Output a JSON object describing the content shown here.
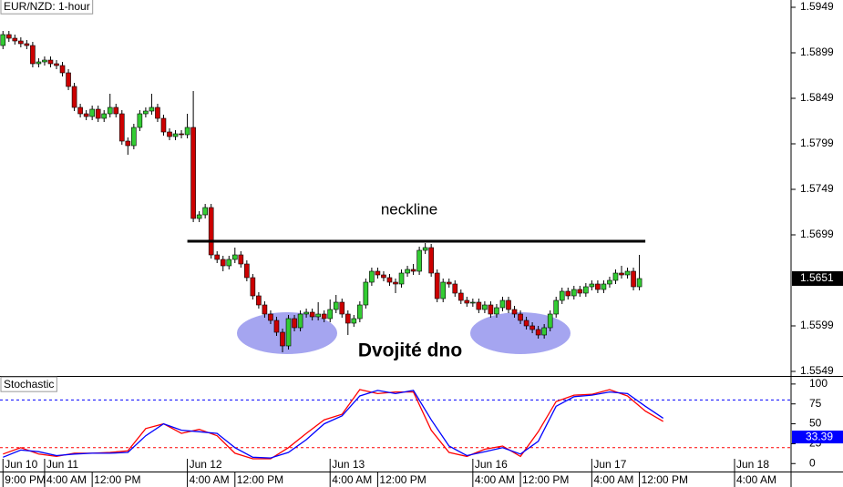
{
  "chart_data": [
    {
      "type": "candlestick",
      "title": "EUR/NZD: 1-hour",
      "up_color": "#33cc33",
      "down_color": "#cc0000",
      "open": [
        1.5907,
        1.5919,
        1.5915,
        1.5912,
        1.5909,
        1.5907,
        1.5887,
        1.5889,
        1.5891,
        1.5887,
        1.5885,
        1.5877,
        1.5862,
        1.5839,
        1.5832,
        1.5829,
        1.5837,
        1.5827,
        1.5832,
        1.5839,
        1.5832,
        1.5802,
        1.5797,
        1.5817,
        1.5832,
        1.5835,
        1.5839,
        1.5827,
        1.5812,
        1.5807,
        1.581,
        1.5809,
        1.5817,
        1.5717,
        1.5721,
        1.5729,
        1.5677,
        1.5672,
        1.5665,
        1.5672,
        1.5677,
        1.5667,
        1.5652,
        1.5632,
        1.5622,
        1.5612,
        1.5605,
        1.5592,
        1.5577,
        1.5607,
        1.5597,
        1.5612,
        1.5614,
        1.5609,
        1.5612,
        1.5607,
        1.5617,
        1.5625,
        1.5612,
        1.5602,
        1.5607,
        1.5622,
        1.5647,
        1.5659,
        1.5655,
        1.5652,
        1.5647,
        1.5645,
        1.5657,
        1.5661,
        1.5659,
        1.5682,
        1.5685,
        1.5657,
        1.5629,
        1.5647,
        1.5645,
        1.5635,
        1.5627,
        1.5624,
        1.5625,
        1.5617,
        1.5622,
        1.5612,
        1.5619,
        1.5627,
        1.5617,
        1.5612,
        1.5605,
        1.5599,
        1.5595,
        1.5589,
        1.5597,
        1.5612,
        1.5627,
        1.5637,
        1.5632,
        1.5639,
        1.5635,
        1.5642,
        1.5645,
        1.5639,
        1.5645,
        1.5649,
        1.5657,
        1.5655,
        1.5659,
        1.5642
      ],
      "high": [
        1.5923,
        1.5923,
        1.5919,
        1.5916,
        1.5913,
        1.5911,
        1.5893,
        1.5895,
        1.5895,
        1.5891,
        1.5889,
        1.5881,
        1.5866,
        1.5843,
        1.5836,
        1.5841,
        1.5841,
        1.5836,
        1.5854,
        1.5843,
        1.5836,
        1.5806,
        1.5821,
        1.5836,
        1.5839,
        1.5854,
        1.5843,
        1.5831,
        1.5816,
        1.5814,
        1.5814,
        1.5832,
        1.5857,
        1.5725,
        1.5733,
        1.5733,
        1.5681,
        1.5676,
        1.5676,
        1.5685,
        1.5681,
        1.5671,
        1.5656,
        1.5636,
        1.5626,
        1.5616,
        1.5609,
        1.5596,
        1.5611,
        1.5611,
        1.5616,
        1.5618,
        1.5618,
        1.5625,
        1.5616,
        1.5628,
        1.5633,
        1.5629,
        1.5616,
        1.5611,
        1.5626,
        1.5651,
        1.5663,
        1.5663,
        1.5659,
        1.5656,
        1.5651,
        1.5661,
        1.5665,
        1.5667,
        1.5686,
        1.569,
        1.5689,
        1.5661,
        1.5651,
        1.5651,
        1.5649,
        1.5639,
        1.5631,
        1.5629,
        1.5629,
        1.5626,
        1.5626,
        1.5623,
        1.5631,
        1.5631,
        1.5621,
        1.5616,
        1.5609,
        1.5603,
        1.5599,
        1.5601,
        1.5616,
        1.5631,
        1.5641,
        1.5641,
        1.5643,
        1.5643,
        1.5646,
        1.5649,
        1.5649,
        1.5649,
        1.5653,
        1.5661,
        1.5665,
        1.5663,
        1.5663,
        1.5677
      ],
      "low": [
        1.5903,
        1.5911,
        1.5908,
        1.5905,
        1.5903,
        1.5883,
        1.5883,
        1.5885,
        1.5883,
        1.5881,
        1.5873,
        1.5858,
        1.5835,
        1.5828,
        1.5825,
        1.5825,
        1.5823,
        1.5823,
        1.5828,
        1.5828,
        1.5798,
        1.5787,
        1.5793,
        1.5813,
        1.5828,
        1.5831,
        1.5823,
        1.5808,
        1.5803,
        1.5803,
        1.5805,
        1.5805,
        1.5713,
        1.5713,
        1.5717,
        1.5673,
        1.5668,
        1.5659,
        1.5661,
        1.5668,
        1.5663,
        1.5648,
        1.5628,
        1.5618,
        1.5608,
        1.5601,
        1.5588,
        1.557,
        1.5573,
        1.5593,
        1.5593,
        1.5608,
        1.5605,
        1.5605,
        1.5603,
        1.5603,
        1.5613,
        1.5608,
        1.5589,
        1.5598,
        1.5603,
        1.5618,
        1.5643,
        1.5651,
        1.5648,
        1.5643,
        1.5635,
        1.5641,
        1.5653,
        1.5655,
        1.5655,
        1.5678,
        1.5653,
        1.5625,
        1.5625,
        1.5641,
        1.5631,
        1.5623,
        1.562,
        1.562,
        1.5613,
        1.5613,
        1.5608,
        1.5608,
        1.5615,
        1.5613,
        1.5608,
        1.5601,
        1.5595,
        1.5591,
        1.5585,
        1.5585,
        1.5593,
        1.5608,
        1.5623,
        1.5628,
        1.5628,
        1.5631,
        1.5631,
        1.5638,
        1.5635,
        1.5635,
        1.5641,
        1.5645,
        1.5651,
        1.5651,
        1.5638,
        1.5638
      ],
      "close": [
        1.5919,
        1.5915,
        1.5912,
        1.5909,
        1.5907,
        1.5887,
        1.5889,
        1.5891,
        1.5887,
        1.5885,
        1.5877,
        1.5862,
        1.5839,
        1.5832,
        1.5829,
        1.5837,
        1.5827,
        1.5832,
        1.5839,
        1.5832,
        1.5802,
        1.5797,
        1.5817,
        1.5832,
        1.5835,
        1.5839,
        1.5827,
        1.5812,
        1.5807,
        1.581,
        1.5809,
        1.5817,
        1.5717,
        1.5721,
        1.5729,
        1.5677,
        1.5672,
        1.5665,
        1.5672,
        1.5677,
        1.5667,
        1.5652,
        1.5632,
        1.5622,
        1.5612,
        1.5605,
        1.5592,
        1.5577,
        1.5607,
        1.5597,
        1.5612,
        1.5614,
        1.5609,
        1.5612,
        1.5607,
        1.5617,
        1.5625,
        1.5612,
        1.5602,
        1.5607,
        1.5622,
        1.5647,
        1.5659,
        1.5655,
        1.5652,
        1.5647,
        1.5645,
        1.5657,
        1.5661,
        1.5659,
        1.5682,
        1.5685,
        1.5657,
        1.5629,
        1.5647,
        1.5645,
        1.5635,
        1.5627,
        1.5624,
        1.5625,
        1.5617,
        1.5622,
        1.5612,
        1.5619,
        1.5627,
        1.5617,
        1.5612,
        1.5605,
        1.5599,
        1.5595,
        1.5589,
        1.5597,
        1.5612,
        1.5627,
        1.5637,
        1.5632,
        1.5639,
        1.5635,
        1.5642,
        1.5645,
        1.5639,
        1.5645,
        1.5649,
        1.5657,
        1.5655,
        1.5659,
        1.5642,
        1.5651
      ],
      "last_price": 1.5651,
      "xlim": [
        -0.5,
        132.5
      ],
      "ylim": [
        1.5544,
        1.5957
      ],
      "yticks": [
        1.5949,
        1.5899,
        1.5849,
        1.5799,
        1.5749,
        1.5699,
        1.5599,
        1.5549
      ],
      "date_ticks": [
        {
          "value": 0,
          "label": "Jun 10"
        },
        {
          "value": 7,
          "label": "Jun 11"
        },
        {
          "value": 31,
          "label": "Jun 12"
        },
        {
          "value": 55,
          "label": "Jun 13"
        },
        {
          "value": 79,
          "label": "Jun 16"
        },
        {
          "value": 99,
          "label": "Jun 17"
        },
        {
          "value": 123,
          "label": "Jun 18"
        }
      ],
      "xticks": [
        {
          "value": 0,
          "label": "9:00 PM"
        },
        {
          "value": 7,
          "label": "4:00 AM"
        },
        {
          "value": 15,
          "label": "12:00 PM"
        },
        {
          "value": 31,
          "label": "4:00 AM"
        },
        {
          "value": 39,
          "label": "12:00 PM"
        },
        {
          "value": 55,
          "label": "4:00 AM"
        },
        {
          "value": 63,
          "label": "12:00 PM"
        },
        {
          "value": 79,
          "label": "4:00 AM"
        },
        {
          "value": 87,
          "label": "12:00 PM"
        },
        {
          "value": 99,
          "label": "4:00 AM"
        },
        {
          "value": 107,
          "label": "12:00 PM"
        },
        {
          "value": 123,
          "label": "4:00 AM"
        }
      ],
      "neckline": {
        "text": "neckline",
        "value": 1.5692,
        "from": 31,
        "to": 108
      },
      "pattern_label": "Dvojité dno"
    },
    {
      "type": "line",
      "title": "Stochastic",
      "x": [
        0,
        3,
        6,
        9,
        12,
        15,
        18,
        21,
        24,
        27,
        30,
        33,
        36,
        39,
        42,
        45,
        48,
        51,
        54,
        57,
        60,
        63,
        66,
        69,
        72,
        75,
        78,
        81,
        84,
        87,
        90,
        93,
        96,
        99,
        102,
        105,
        108,
        111
      ],
      "series": [
        {
          "color": "#ff0000",
          "values": [
            12,
            20,
            12,
            9,
            13,
            13,
            14,
            16,
            44,
            50,
            38,
            43,
            35,
            13,
            6,
            6,
            20,
            38,
            55,
            62,
            93,
            88,
            90,
            90,
            42,
            14,
            9,
            18,
            22,
            9,
            40,
            78,
            86,
            87,
            93,
            85,
            66,
            53
          ]
        },
        {
          "color": "#0000ff",
          "values": [
            8,
            17,
            15,
            10,
            12,
            13,
            13,
            14,
            35,
            50,
            42,
            40,
            38,
            20,
            8,
            7,
            14,
            30,
            50,
            60,
            85,
            92,
            88,
            92,
            55,
            22,
            10,
            15,
            20,
            12,
            28,
            72,
            84,
            86,
            90,
            88,
            72,
            57
          ],
          "last_value": 33.39
        }
      ],
      "levels": [
        {
          "value": 80,
          "color": "#0000ff"
        },
        {
          "value": 20,
          "color": "#ff0000"
        }
      ],
      "xlim": [
        -0.5,
        132.5
      ],
      "ylim": [
        -10,
        109
      ],
      "yticks": [
        100,
        75,
        50,
        25,
        0
      ]
    }
  ]
}
